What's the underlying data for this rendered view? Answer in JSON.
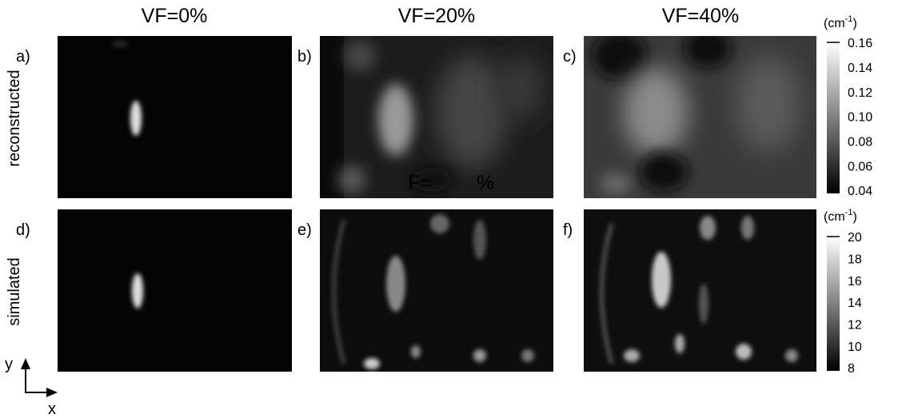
{
  "columns": [
    "VF=0%",
    "VF=20%",
    "VF=40%"
  ],
  "rows": [
    "reconstructed",
    "simulated"
  ],
  "panels": [
    "a)",
    "b)",
    "c)",
    "d)",
    "e)",
    "f)"
  ],
  "overlay_text": [
    "F=",
    "%"
  ],
  "colorbars": [
    {
      "unit": {
        "open": "(cm",
        "sup": "-1",
        "close": ")"
      },
      "ticks": [
        "0.16",
        "0.14",
        "0.12",
        "0.10",
        "0.08",
        "0.06",
        "0.04"
      ]
    },
    {
      "unit": {
        "open": "(cm",
        "sup": "-1",
        "close": ")"
      },
      "ticks": [
        "20",
        "18",
        "16",
        "14",
        "12",
        "10",
        "8"
      ]
    }
  ],
  "axes": {
    "y": "y",
    "x": "x"
  }
}
